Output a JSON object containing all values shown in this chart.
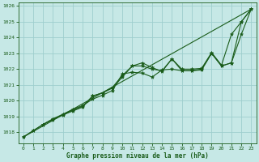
{
  "title": "Graphe pression niveau de la mer (hPa)",
  "bg_color": "#c6e8e6",
  "grid_color": "#9ecece",
  "line_color": "#1a5c1a",
  "xlim": [
    -0.5,
    23.5
  ],
  "ylim": [
    1017.3,
    1026.2
  ],
  "yticks": [
    1018,
    1019,
    1020,
    1021,
    1022,
    1023,
    1024,
    1025,
    1026
  ],
  "xticks": [
    0,
    1,
    2,
    3,
    4,
    5,
    6,
    7,
    8,
    9,
    10,
    11,
    12,
    13,
    14,
    15,
    16,
    17,
    18,
    19,
    20,
    21,
    22,
    23
  ],
  "line_straight": {
    "x": [
      0,
      23
    ],
    "y": [
      1017.7,
      1025.8
    ]
  },
  "line_a": {
    "x": [
      0,
      1,
      2,
      3,
      4,
      5,
      6,
      7,
      8,
      9,
      10,
      11,
      12,
      13,
      14,
      15,
      16,
      17,
      18,
      19,
      20,
      21,
      22,
      23
    ],
    "y": [
      1017.7,
      1018.1,
      1018.5,
      1018.8,
      1019.1,
      1019.35,
      1019.6,
      1020.3,
      1020.5,
      1020.8,
      1021.5,
      1022.2,
      1022.2,
      1022.0,
      1021.9,
      1022.65,
      1021.9,
      1021.9,
      1021.95,
      1023.0,
      1022.2,
      1022.4,
      1025.0,
      1025.8
    ]
  },
  "line_b": {
    "x": [
      0,
      1,
      2,
      3,
      4,
      5,
      6,
      7,
      8,
      9,
      10,
      11,
      12,
      13,
      14,
      15,
      16,
      17,
      18,
      19,
      20,
      21,
      22,
      23
    ],
    "y": [
      1017.7,
      1018.1,
      1018.5,
      1018.85,
      1019.15,
      1019.45,
      1019.7,
      1020.1,
      1020.35,
      1020.65,
      1021.7,
      1021.8,
      1021.75,
      1021.5,
      1021.95,
      1022.0,
      1021.9,
      1021.9,
      1022.0,
      1023.0,
      1022.2,
      1022.4,
      1024.2,
      1025.8
    ]
  },
  "line_c": {
    "x": [
      2,
      3,
      4,
      5,
      6,
      7,
      8,
      9,
      10,
      11,
      12,
      13,
      14,
      15,
      16,
      17,
      18,
      19,
      20,
      21,
      22,
      23
    ],
    "y": [
      1018.5,
      1018.85,
      1019.1,
      1019.4,
      1019.65,
      1020.3,
      1020.5,
      1020.85,
      1021.6,
      1022.2,
      1022.4,
      1022.1,
      1021.85,
      1022.65,
      1022.0,
      1022.0,
      1022.05,
      1023.05,
      1022.25,
      1024.2,
      1025.0,
      1025.8
    ]
  }
}
